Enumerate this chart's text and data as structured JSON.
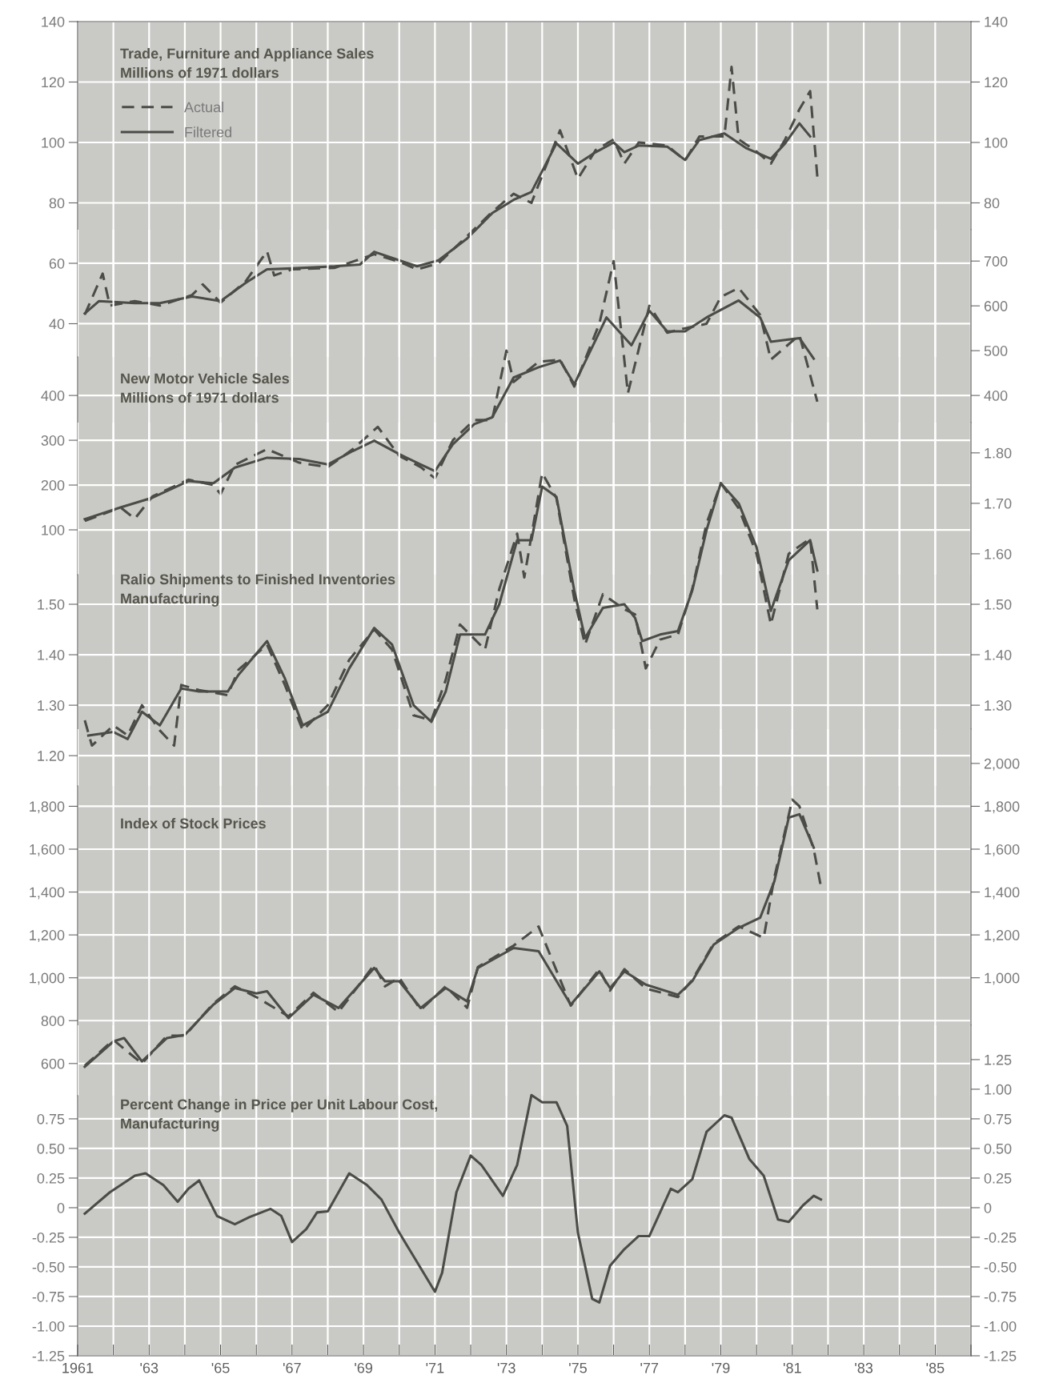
{
  "chart_data": [
    {
      "type": "line",
      "title": "Trade, Furniture and Appliance Sales",
      "subtitle": "Millions of 1971 dollars",
      "xlim": [
        1961,
        1986
      ],
      "ylim": [
        29,
        140
      ],
      "yticks": [
        140,
        120,
        100,
        80,
        60,
        40
      ],
      "y2lim": [
        29,
        140
      ],
      "y2ticks": [
        140,
        120,
        100,
        80
      ],
      "tick_labels": "y",
      "grid": true,
      "legend": "top left",
      "xticks": [
        1961,
        1962,
        1963,
        1964,
        1965,
        1966,
        1967,
        1968,
        1969,
        1970,
        1971,
        1972,
        1973,
        1974,
        1975,
        1976,
        1977,
        1978,
        1979,
        1980,
        1981,
        1982,
        1983,
        1984,
        1985,
        1986
      ],
      "series": [
        {
          "name": "Actual",
          "color": "#4b4b47",
          "line_style": "dashed",
          "x": [
            1961.2,
            1961.7,
            1961.9,
            1962.6,
            1963.3,
            1964.2,
            1964.5,
            1965.0,
            1965.7,
            1966.3,
            1966.5,
            1967.0,
            1968.2,
            1969.3,
            1970.0,
            1970.5,
            1971.1,
            1971.9,
            1972.6,
            1973.2,
            1973.7,
            1974.5,
            1975.0,
            1975.5,
            1976.0,
            1976.3,
            1976.7,
            1977.5,
            1978.0,
            1978.4,
            1979.1,
            1979.3,
            1979.5,
            1980.0,
            1980.4,
            1980.8,
            1981.2,
            1981.5,
            1981.7
          ],
          "values": [
            43,
            56.6,
            46,
            47.5,
            46,
            49.5,
            53,
            47,
            54,
            64,
            56,
            58,
            58.5,
            63,
            60.5,
            58,
            60,
            69,
            77,
            83,
            80,
            104,
            88,
            97.5,
            101,
            93,
            100,
            99,
            94,
            102,
            102,
            125,
            101,
            97,
            93,
            101,
            111,
            117,
            88.7
          ]
        },
        {
          "name": "Filtered",
          "color": "#4b4b47",
          "line_style": "solid",
          "x": [
            1961.2,
            1961.6,
            1962.6,
            1963.3,
            1964.2,
            1965.0,
            1965.7,
            1966.3,
            1967.0,
            1968.2,
            1968.9,
            1969.3,
            1970.0,
            1970.5,
            1971.1,
            1971.9,
            1972.6,
            1973.2,
            1973.7,
            1974.4,
            1975.0,
            1975.5,
            1976.0,
            1976.3,
            1976.7,
            1977.5,
            1978.0,
            1978.4,
            1979.1,
            1979.7,
            1980.4,
            1980.8,
            1981.2,
            1981.5
          ],
          "values": [
            43.4,
            47.5,
            46.8,
            46.8,
            49,
            47.5,
            53.5,
            58,
            58.3,
            59,
            59.6,
            63.8,
            61,
            59,
            61,
            68.2,
            76.6,
            81,
            83.6,
            99.7,
            93,
            96.8,
            100,
            96.8,
            99,
            98.6,
            94.2,
            100.8,
            103,
            98.2,
            94.6,
            99.7,
            106.3,
            102
          ]
        }
      ]
    },
    {
      "type": "line",
      "title": "New Motor Vehicle Sales",
      "subtitle": "Millions of 1971 dollars",
      "xlim": [
        1961,
        1986
      ],
      "ylim": [
        0,
        770
      ],
      "yticks": [
        400,
        300,
        200,
        100
      ],
      "y2lim": [
        0,
        770
      ],
      "y2ticks": [
        700,
        600,
        500,
        400
      ],
      "tick_labels": "y",
      "grid": true,
      "xticks": [
        1961,
        1962,
        1963,
        1964,
        1965,
        1966,
        1967,
        1968,
        1969,
        1970,
        1971,
        1972,
        1973,
        1974,
        1975,
        1976,
        1977,
        1978,
        1979,
        1980,
        1981,
        1982,
        1983,
        1984,
        1985,
        1986
      ],
      "series": [
        {
          "color": "#4b4b47",
          "line_style": "dashed",
          "x": [
            1961.2,
            1962.2,
            1962.6,
            1963.1,
            1964.1,
            1964.8,
            1965.0,
            1965.4,
            1966.3,
            1967.2,
            1968.0,
            1968.7,
            1969.4,
            1970.0,
            1970.6,
            1971.0,
            1971.5,
            1972.1,
            1972.6,
            1973.0,
            1973.2,
            1973.9,
            1974.5,
            1974.9,
            1975.6,
            1976.0,
            1976.4,
            1977.0,
            1977.5,
            1978.0,
            1978.6,
            1979.0,
            1979.5,
            1980.1,
            1980.4,
            1981.2,
            1981.7
          ],
          "values": [
            120,
            150,
            125,
            175,
            212,
            200,
            180,
            245,
            280,
            250,
            240,
            280,
            330,
            265,
            240,
            215,
            300,
            345,
            345,
            500,
            430,
            475,
            480,
            420,
            560,
            700,
            405,
            600,
            540,
            550,
            560,
            620,
            640,
            580,
            480,
            535,
            386
          ]
        },
        {
          "color": "#4b4b47",
          "line_style": "solid",
          "x": [
            1961.2,
            1962.2,
            1963.1,
            1964.1,
            1964.8,
            1965.4,
            1966.3,
            1967.2,
            1968.0,
            1968.7,
            1969.3,
            1970.0,
            1970.6,
            1971.0,
            1971.5,
            1972.1,
            1972.6,
            1973.2,
            1973.9,
            1974.5,
            1974.9,
            1975.8,
            1976.5,
            1977.0,
            1977.5,
            1978.0,
            1978.6,
            1979.5,
            1980.1,
            1980.4,
            1981.2,
            1981.6
          ],
          "values": [
            124,
            150,
            172,
            209,
            204,
            239,
            261,
            258,
            246,
            276,
            299,
            269,
            246,
            231,
            291,
            336,
            351,
            440,
            463,
            478,
            425,
            574,
            512,
            589,
            543,
            543,
            574,
            612,
            574,
            520,
            528,
            482
          ]
        }
      ]
    },
    {
      "type": "line",
      "title": "Ralio Shipments to Finished Inventories",
      "subtitle": "Manufacturing",
      "xlim": [
        1961,
        1986
      ],
      "ylim": [
        1.14,
        1.86
      ],
      "yticks": [
        {
          "value": 1.5,
          "label": "1.50"
        },
        {
          "value": 1.4,
          "label": "1.40"
        },
        {
          "value": 1.3,
          "label": "1.30"
        },
        {
          "value": 1.2,
          "label": "1.20"
        }
      ],
      "y2lim": [
        1.14,
        1.86
      ],
      "y2ticks": [
        {
          "value": 1.8,
          "label": "1.80"
        },
        {
          "value": 1.7,
          "label": "1.70"
        },
        {
          "value": 1.6,
          "label": "1.60"
        },
        {
          "value": 1.5,
          "label": "1.50"
        },
        {
          "value": 1.4,
          "label": "1.40"
        },
        {
          "value": 1.3,
          "label": "1.30"
        }
      ],
      "tick_labels": "y",
      "grid": true,
      "xticks": [
        1961,
        1962,
        1963,
        1964,
        1965,
        1966,
        1967,
        1968,
        1969,
        1970,
        1971,
        1972,
        1973,
        1974,
        1975,
        1976,
        1977,
        1978,
        1979,
        1980,
        1981,
        1982,
        1983,
        1984,
        1985,
        1986
      ],
      "series": [
        {
          "color": "#4b4b47",
          "line_style": "dashed",
          "x": [
            1961.2,
            1961.4,
            1962.0,
            1962.4,
            1962.8,
            1963.3,
            1963.7,
            1963.9,
            1964.4,
            1965.2,
            1965.5,
            1966.3,
            1966.8,
            1967.3,
            1968.0,
            1968.6,
            1969.3,
            1969.8,
            1970.4,
            1970.9,
            1971.3,
            1971.7,
            1972.4,
            1972.8,
            1973.3,
            1973.5,
            1974.0,
            1974.4,
            1974.9,
            1975.2,
            1975.7,
            1976.3,
            1976.6,
            1976.9,
            1977.3,
            1977.8,
            1978.2,
            1978.6,
            1979.0,
            1979.5,
            1980.0,
            1980.4,
            1980.9,
            1981.5,
            1981.7
          ],
          "values": [
            1.27,
            1.22,
            1.26,
            1.24,
            1.3,
            1.25,
            1.22,
            1.34,
            1.33,
            1.32,
            1.37,
            1.42,
            1.34,
            1.25,
            1.3,
            1.39,
            1.45,
            1.41,
            1.28,
            1.27,
            1.35,
            1.46,
            1.41,
            1.53,
            1.64,
            1.553,
            1.76,
            1.71,
            1.51,
            1.42,
            1.52,
            1.49,
            1.48,
            1.373,
            1.43,
            1.44,
            1.53,
            1.66,
            1.74,
            1.69,
            1.6,
            1.46,
            1.6,
            1.63,
            1.49
          ]
        },
        {
          "color": "#4b4b47",
          "line_style": "solid",
          "x": [
            1961.3,
            1962.0,
            1962.4,
            1962.8,
            1963.3,
            1963.9,
            1964.4,
            1965.2,
            1965.5,
            1966.3,
            1966.8,
            1967.3,
            1968.0,
            1968.6,
            1969.3,
            1969.8,
            1970.4,
            1970.9,
            1971.3,
            1971.7,
            1972.4,
            1972.8,
            1973.3,
            1973.7,
            1974.0,
            1974.4,
            1974.9,
            1975.2,
            1975.7,
            1976.3,
            1976.6,
            1976.8,
            1977.3,
            1977.8,
            1978.2,
            1978.6,
            1979.0,
            1979.5,
            1980.0,
            1980.4,
            1980.9,
            1981.5,
            1981.7
          ],
          "values": [
            1.24,
            1.247,
            1.233,
            1.287,
            1.26,
            1.333,
            1.327,
            1.327,
            1.36,
            1.427,
            1.353,
            1.26,
            1.287,
            1.373,
            1.453,
            1.42,
            1.3,
            1.267,
            1.327,
            1.44,
            1.44,
            1.5,
            1.627,
            1.627,
            1.733,
            1.713,
            1.527,
            1.433,
            1.493,
            1.5,
            1.473,
            1.427,
            1.44,
            1.447,
            1.527,
            1.647,
            1.74,
            1.7,
            1.613,
            1.487,
            1.587,
            1.627,
            1.567
          ]
        }
      ]
    },
    {
      "type": "line",
      "title": "Index of Stock Prices",
      "xlim": [
        1961,
        1986
      ],
      "ylim": [
        450,
        2160
      ],
      "yticks": [
        {
          "value": 1800,
          "label": "1,800"
        },
        {
          "value": 1600,
          "label": "1,600"
        },
        {
          "value": 1400,
          "label": "1,400"
        },
        {
          "value": 1200,
          "label": "1,200"
        },
        {
          "value": 1000,
          "label": "1,000"
        },
        800,
        600
      ],
      "y2lim": [
        450,
        2160
      ],
      "y2ticks": [
        {
          "value": 2000,
          "label": "2,000"
        },
        {
          "value": 1800,
          "label": "1,800"
        },
        {
          "value": 1600,
          "label": "1,600"
        },
        {
          "value": 1400,
          "label": "1,400"
        },
        {
          "value": 1200,
          "label": "1,200"
        },
        {
          "value": 1000,
          "label": "1,000"
        }
      ],
      "tick_labels": "y",
      "grid": true,
      "xticks": [
        1961,
        1962,
        1963,
        1964,
        1965,
        1966,
        1967,
        1968,
        1969,
        1970,
        1971,
        1972,
        1973,
        1974,
        1975,
        1976,
        1977,
        1978,
        1979,
        1980,
        1981,
        1982,
        1983,
        1984,
        1985,
        1986
      ],
      "series": [
        {
          "color": "#4b4b47",
          "line_style": "dashed",
          "x": [
            1961.2,
            1962.0,
            1962.8,
            1963.5,
            1964.0,
            1964.8,
            1965.4,
            1966.0,
            1966.9,
            1967.6,
            1968.3,
            1969.3,
            1969.6,
            1970.0,
            1970.6,
            1971.3,
            1971.9,
            1972.2,
            1973.2,
            1973.9,
            1974.8,
            1975.6,
            1975.9,
            1976.3,
            1976.9,
            1977.8,
            1978.2,
            1978.8,
            1979.5,
            1980.2,
            1980.5,
            1981.0,
            1981.2,
            1981.6,
            1981.8
          ],
          "values": [
            590,
            710,
            600,
            730,
            730,
            880,
            960,
            910,
            820,
            930,
            840,
            1060,
            960,
            1000,
            850,
            960,
            860,
            1050,
            1150,
            1239,
            870,
            1040,
            940,
            1040,
            950,
            910,
            990,
            1160,
            1240,
            1186,
            1470,
            1831,
            1800,
            1600,
            1426
          ]
        },
        {
          "color": "#4b4b47",
          "line_style": "solid",
          "x": [
            1961.2,
            1962.0,
            1962.3,
            1962.8,
            1963.5,
            1964.0,
            1964.8,
            1965.4,
            1966.0,
            1966.3,
            1966.9,
            1967.6,
            1968.3,
            1969.3,
            1969.6,
            1970.0,
            1970.6,
            1971.3,
            1971.9,
            1972.2,
            1973.2,
            1973.9,
            1974.8,
            1975.6,
            1975.9,
            1976.3,
            1976.9,
            1977.8,
            1978.2,
            1978.8,
            1979.5,
            1980.1,
            1980.5,
            1980.9,
            1981.2,
            1981.6
          ],
          "values": [
            585,
            703,
            719,
            610,
            719,
            734,
            875,
            952,
            927,
            937,
            812,
            921,
            859,
            1046,
            984,
            984,
            859,
            952,
            890,
            1046,
            1139,
            1124,
            875,
            1030,
            952,
            1030,
            968,
            921,
            984,
            1155,
            1233,
            1280,
            1451,
            1747,
            1763,
            1607
          ]
        }
      ]
    },
    {
      "type": "line",
      "title": "Percent Change in Price per Unit Labour Cost,",
      "subtitle": "Manufacturing",
      "xlim": [
        1961,
        1986
      ],
      "ylim": [
        -1.25,
        1.54
      ],
      "yticks": [
        {
          "value": 0.75,
          "label": "0.75"
        },
        {
          "value": 0.5,
          "label": "0.50"
        },
        {
          "value": 0.25,
          "label": "0.25"
        },
        0,
        {
          "value": -0.25,
          "label": "-0.25"
        },
        {
          "value": -0.5,
          "label": "-0.50"
        },
        {
          "value": -0.75,
          "label": "-0.75"
        },
        {
          "value": -1.0,
          "label": "-1.00"
        },
        {
          "value": -1.25,
          "label": "-1.25"
        }
      ],
      "y2lim": [
        -1.25,
        1.54
      ],
      "y2ticks": [
        {
          "value": 1.25,
          "label": "1.25"
        },
        {
          "value": 1.0,
          "label": "1.00"
        },
        {
          "value": 0.75,
          "label": "0.75"
        },
        {
          "value": 0.5,
          "label": "0.50"
        },
        {
          "value": 0.25,
          "label": "0.25"
        },
        0,
        {
          "value": -0.25,
          "label": "-0.25"
        },
        {
          "value": -0.5,
          "label": "-0.50"
        },
        {
          "value": -0.75,
          "label": "-0.75"
        },
        {
          "value": -1.0,
          "label": "-1.00"
        },
        {
          "value": -1.25,
          "label": "-1.25"
        }
      ],
      "grid": true,
      "xticks": [
        1961,
        {
          "value": 1962,
          "label": null
        },
        {
          "value": 1963,
          "label": "'63"
        },
        {
          "value": 1964,
          "label": null
        },
        {
          "value": 1965,
          "label": "'65"
        },
        {
          "value": 1966,
          "label": null
        },
        {
          "value": 1967,
          "label": "'67"
        },
        {
          "value": 1968,
          "label": null
        },
        {
          "value": 1969,
          "label": "'69"
        },
        {
          "value": 1970,
          "label": null
        },
        {
          "value": 1971,
          "label": "'71"
        },
        {
          "value": 1972,
          "label": null
        },
        {
          "value": 1973,
          "label": "'73"
        },
        {
          "value": 1974,
          "label": null
        },
        {
          "value": 1975,
          "label": "'75"
        },
        {
          "value": 1976,
          "label": null
        },
        {
          "value": 1977,
          "label": "'77"
        },
        {
          "value": 1978,
          "label": null
        },
        {
          "value": 1979,
          "label": "'79"
        },
        {
          "value": 1980,
          "label": null
        },
        {
          "value": 1981,
          "label": "'81"
        },
        {
          "value": 1982,
          "label": null
        },
        {
          "value": 1983,
          "label": "'83"
        },
        {
          "value": 1984,
          "label": null
        },
        {
          "value": 1985,
          "label": "'85"
        },
        {
          "value": 1986,
          "label": null
        }
      ],
      "series": [
        {
          "color": "#4b4b47",
          "line_style": "solid",
          "x": [
            1961.2,
            1961.9,
            1962.6,
            1962.9,
            1963.4,
            1963.8,
            1964.1,
            1964.4,
            1964.9,
            1965.4,
            1965.8,
            1966.4,
            1966.7,
            1967.0,
            1967.4,
            1967.7,
            1968.0,
            1968.6,
            1969.1,
            1969.5,
            1970.0,
            1970.5,
            1971.0,
            1971.2,
            1971.6,
            1972.0,
            1972.3,
            1972.9,
            1973.3,
            1973.7,
            1974.0,
            1974.4,
            1974.7,
            1975.0,
            1975.4,
            1975.6,
            1975.9,
            1976.3,
            1976.7,
            1977.0,
            1977.6,
            1977.8,
            1978.2,
            1978.6,
            1979.1,
            1979.3,
            1979.8,
            1980.2,
            1980.6,
            1980.9,
            1981.3,
            1981.6,
            1981.8
          ],
          "values": [
            -0.05,
            0.13,
            0.27,
            0.29,
            0.19,
            0.05,
            0.16,
            0.23,
            -0.07,
            -0.14,
            -0.08,
            -0.01,
            -0.07,
            -0.29,
            -0.18,
            -0.04,
            -0.03,
            0.29,
            0.19,
            0.07,
            -0.21,
            -0.46,
            -0.71,
            -0.55,
            0.13,
            0.44,
            0.36,
            0.1,
            0.36,
            0.95,
            0.89,
            0.89,
            0.69,
            -0.21,
            -0.77,
            -0.8,
            -0.49,
            -0.35,
            -0.24,
            -0.24,
            0.16,
            0.13,
            0.24,
            0.64,
            0.78,
            0.76,
            0.41,
            0.27,
            -0.1,
            -0.12,
            0.02,
            0.1,
            0.07
          ]
        }
      ]
    }
  ]
}
